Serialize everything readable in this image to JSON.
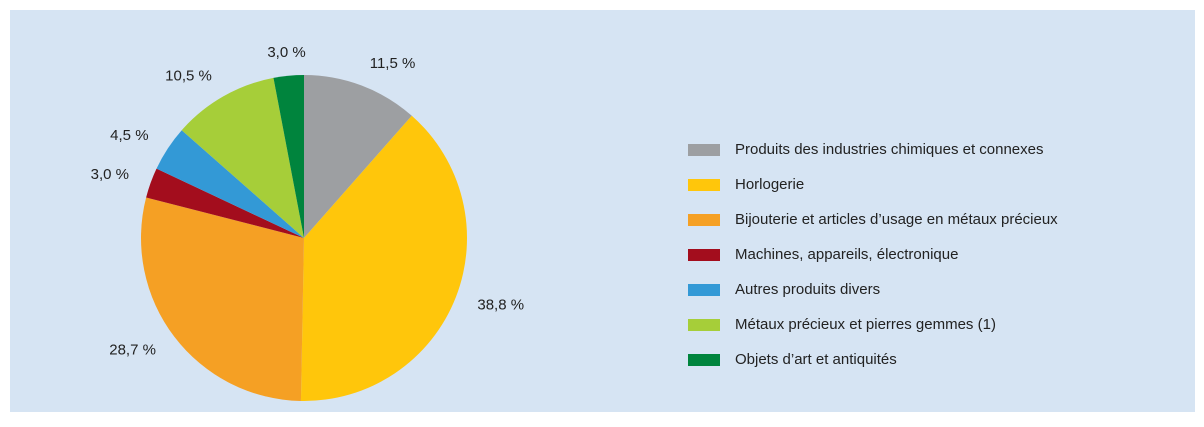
{
  "chart_data": {
    "type": "pie",
    "categories": [
      "Produits des industries chimiques et connexes",
      "Horlogerie",
      "Bijouterie et articles d’usage en métaux précieux",
      "Machines, appareils, électronique",
      "Autres produits divers",
      "Métaux précieux et pierres gemmes (1)",
      "Objets d’art et antiquités"
    ],
    "values": [
      11.5,
      38.8,
      28.7,
      3.0,
      4.5,
      10.5,
      3.0
    ],
    "value_labels": [
      "11,5 %",
      "38,8 %",
      "28,7 %",
      "3,0 %",
      "4,5 %",
      "10,5 %",
      "3,0 %"
    ],
    "colors": [
      "#9d9fa2",
      "#ffc60b",
      "#f5a024",
      "#a30d1d",
      "#3399d6",
      "#a6ce39",
      "#00843d"
    ],
    "legend": "right"
  }
}
